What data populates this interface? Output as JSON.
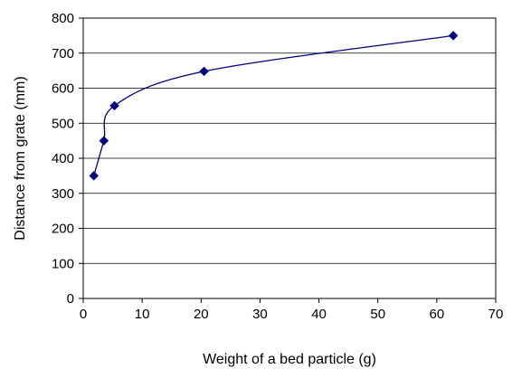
{
  "chart_data": {
    "type": "scatter",
    "title": "",
    "xlabel": "Weight of a bed particle (g)",
    "ylabel": "Distance from grate (mm)",
    "xlim": [
      0,
      70
    ],
    "ylim": [
      0,
      800
    ],
    "x_ticks": [
      "0",
      "10",
      "20",
      "30",
      "40",
      "50",
      "60",
      "70"
    ],
    "y_ticks": [
      "0",
      "100",
      "200",
      "300",
      "400",
      "500",
      "600",
      "700",
      "800"
    ],
    "grid": "horizontal",
    "legend": "none",
    "marker": "diamond",
    "line": "smoothed",
    "color": "#000080",
    "series": [
      {
        "points": [
          {
            "x": 1.8,
            "y": 350
          },
          {
            "x": 3.5,
            "y": 450
          },
          {
            "x": 5.3,
            "y": 550
          },
          {
            "x": 20.5,
            "y": 648
          },
          {
            "x": 62.8,
            "y": 750
          }
        ]
      }
    ]
  }
}
